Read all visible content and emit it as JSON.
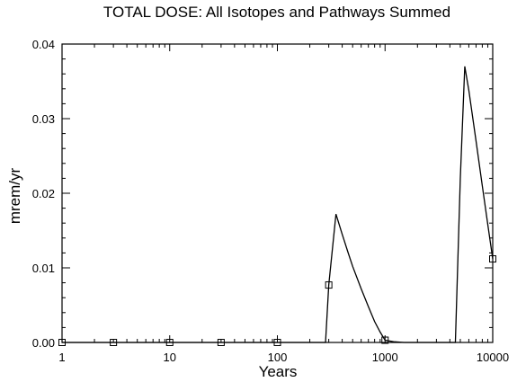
{
  "chart_data": {
    "type": "line",
    "title": "TOTAL DOSE: All Isotopes and Pathways Summed",
    "xlabel": "Years",
    "ylabel": "mrem/yr",
    "x_scale": "log",
    "xlim": [
      1,
      10000
    ],
    "ylim": [
      0,
      0.04
    ],
    "xticks": [
      1,
      10,
      100,
      1000,
      10000
    ],
    "xtick_labels": [
      "1",
      "10",
      "100",
      "1000",
      "10000"
    ],
    "yticks": [
      0,
      0.01,
      0.02,
      0.03,
      0.04
    ],
    "ytick_labels": [
      "0.00",
      "0.01",
      "0.02",
      "0.03",
      "0.04"
    ],
    "grid": false,
    "legend": "none",
    "series": [
      {
        "x": [
          1,
          3,
          10,
          30,
          100,
          280,
          300,
          350,
          400,
          450,
          500,
          600,
          700,
          800,
          900,
          1000,
          1200,
          1500,
          2000,
          3000,
          4500,
          5000,
          5500,
          6000,
          7000,
          8000,
          9000,
          10000
        ],
        "y": [
          0,
          0,
          0,
          0,
          0,
          0,
          0.0077,
          0.0172,
          0.0145,
          0.0122,
          0.0102,
          0.0072,
          0.0048,
          0.0028,
          0.0014,
          0.0003,
          0.0001,
          0,
          0,
          0,
          0,
          0.022,
          0.037,
          0.0338,
          0.027,
          0.021,
          0.0158,
          0.0112
        ],
        "markers_x": [
          1,
          3,
          10,
          30,
          100,
          300,
          1000,
          10000
        ],
        "markers_y": [
          0,
          0,
          0,
          0,
          0,
          0.0077,
          0.0003,
          0.0112
        ],
        "marker": "square",
        "color": "#000000"
      }
    ]
  }
}
